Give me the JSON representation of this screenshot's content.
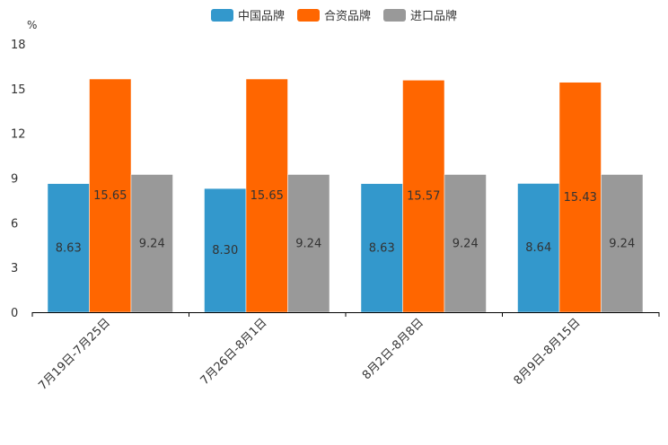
{
  "chart_data": {
    "type": "bar",
    "unit_label": "%",
    "categories": [
      "7月19日-7月25日",
      "7月26日-8月1日",
      "8月2日-8月8日",
      "8月9日-8月15日"
    ],
    "series": [
      {
        "name": "中国品牌",
        "color": "#3398cc",
        "values": [
          8.63,
          8.3,
          8.63,
          8.64
        ],
        "labels": [
          "8.63",
          "8.30",
          "8.63",
          "8.64"
        ]
      },
      {
        "name": "合资品牌",
        "color": "#ff6600",
        "values": [
          15.65,
          15.65,
          15.57,
          15.43
        ],
        "labels": [
          "15.65",
          "15.65",
          "15.57",
          "15.43"
        ]
      },
      {
        "name": "进口品牌",
        "color": "#999999",
        "values": [
          9.24,
          9.24,
          9.24,
          9.24
        ],
        "labels": [
          "9.24",
          "9.24",
          "9.24",
          "9.24"
        ]
      }
    ],
    "yticks": [
      "0",
      "3",
      "6",
      "9",
      "12",
      "15",
      "18"
    ],
    "ylim": [
      0,
      18
    ],
    "grid": false,
    "legend_position": "top-center"
  }
}
